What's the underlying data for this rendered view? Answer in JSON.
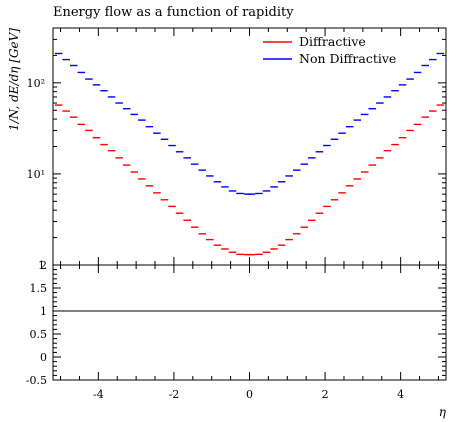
{
  "chart_data": [
    {
      "type": "line",
      "title": "Energy flow as a function of rapidity",
      "xlabel": "η",
      "ylabel": "1/N, dE/dη [GeV]",
      "y_scale": "log",
      "xlim": [
        -5.2,
        5.2
      ],
      "ylim": [
        1,
        400
      ],
      "y_ticks": [
        {
          "value": 1,
          "label": "1"
        },
        {
          "value": 10,
          "label": "10¹"
        },
        {
          "value": 100,
          "label": "10²"
        }
      ],
      "legend_position": "top-right",
      "x": [
        -5.05,
        -4.85,
        -4.65,
        -4.45,
        -4.25,
        -4.05,
        -3.85,
        -3.65,
        -3.45,
        -3.25,
        -3.05,
        -2.85,
        -2.65,
        -2.45,
        -2.25,
        -2.05,
        -1.85,
        -1.65,
        -1.45,
        -1.25,
        -1.05,
        -0.85,
        -0.65,
        -0.45,
        -0.25,
        -0.05,
        0.05,
        0.25,
        0.45,
        0.65,
        0.85,
        1.05,
        1.25,
        1.45,
        1.65,
        1.85,
        2.05,
        2.25,
        2.45,
        2.65,
        2.85,
        3.05,
        3.25,
        3.45,
        3.65,
        3.85,
        4.05,
        4.25,
        4.45,
        4.65,
        4.85,
        5.05
      ],
      "series": [
        {
          "name": "Diffractive",
          "color": "#ff0000",
          "values": [
            57,
            49,
            42,
            35,
            30,
            25,
            21,
            18,
            15,
            12.5,
            10.5,
            8.8,
            7.4,
            6.2,
            5.2,
            4.4,
            3.7,
            3.1,
            2.6,
            2.2,
            1.9,
            1.65,
            1.5,
            1.38,
            1.31,
            1.3,
            1.3,
            1.31,
            1.38,
            1.5,
            1.65,
            1.9,
            2.2,
            2.6,
            3.1,
            3.7,
            4.4,
            5.2,
            6.2,
            7.4,
            8.8,
            10.5,
            12.5,
            15,
            18,
            21,
            25,
            30,
            35,
            42,
            49,
            57
          ]
        },
        {
          "name": "Non Diffractive",
          "color": "#0000ff",
          "values": [
            210,
            180,
            155,
            130,
            110,
            95,
            82,
            70,
            60,
            52,
            45,
            39,
            33,
            28,
            24,
            20.5,
            17.5,
            15,
            12.8,
            11,
            9.5,
            8.2,
            7.2,
            6.5,
            6.1,
            6.0,
            6.0,
            6.1,
            6.5,
            7.2,
            8.2,
            9.5,
            11,
            12.8,
            15,
            17.5,
            20.5,
            24,
            28,
            33,
            39,
            45,
            52,
            60,
            70,
            82,
            95,
            110,
            130,
            155,
            180,
            210
          ]
        }
      ]
    },
    {
      "type": "line",
      "title": "",
      "xlabel": "η",
      "ylabel": "",
      "xlim": [
        -5.2,
        5.2
      ],
      "ylim": [
        -0.5,
        2
      ],
      "x_ticks": [
        {
          "value": -4,
          "label": "-4"
        },
        {
          "value": -2,
          "label": "-2"
        },
        {
          "value": 0,
          "label": "0"
        },
        {
          "value": 2,
          "label": "2"
        },
        {
          "value": 4,
          "label": "4"
        }
      ],
      "y_ticks": [
        {
          "value": 2,
          "label": "2"
        },
        {
          "value": 1.5,
          "label": "1.5"
        },
        {
          "value": 1,
          "label": "1"
        },
        {
          "value": 0.5,
          "label": "0.5"
        },
        {
          "value": 0,
          "label": "0"
        },
        {
          "value": -0.5,
          "label": "-0.5"
        }
      ],
      "reference_line": 1
    }
  ]
}
